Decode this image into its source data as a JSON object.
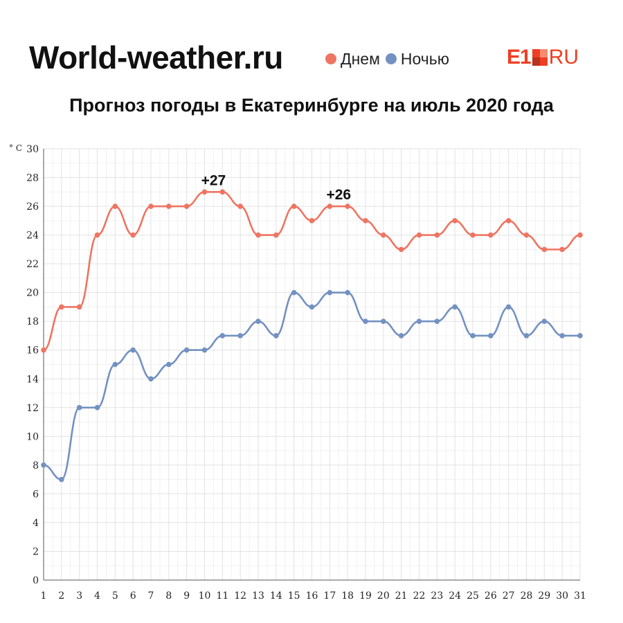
{
  "header": {
    "site_title": "World-weather.ru",
    "legend": [
      {
        "label": "Днем",
        "color": "#ef7462"
      },
      {
        "label": "Ночью",
        "color": "#7391c1"
      }
    ],
    "logo": {
      "left": "E1",
      "right": "RU",
      "color": "#ef3e23"
    }
  },
  "chart_data": {
    "type": "line",
    "title": "Прогноз погоды в Екатеринбурге на июль 2020 года",
    "ylabel": "° C",
    "xlabel": "",
    "x": [
      1,
      2,
      3,
      4,
      5,
      6,
      7,
      8,
      9,
      10,
      11,
      12,
      13,
      14,
      15,
      16,
      17,
      18,
      19,
      20,
      21,
      22,
      23,
      24,
      25,
      26,
      27,
      28,
      29,
      30,
      31
    ],
    "ylim": [
      0,
      30
    ],
    "yticks": [
      0,
      2,
      4,
      6,
      8,
      10,
      12,
      14,
      16,
      18,
      20,
      22,
      24,
      26,
      28,
      30
    ],
    "grid": true,
    "series": [
      {
        "name": "Днем",
        "color": "#ef7462",
        "values": [
          16,
          19,
          19,
          24,
          26,
          24,
          26,
          26,
          26,
          27,
          27,
          26,
          24,
          24,
          26,
          25,
          26,
          26,
          25,
          24,
          23,
          24,
          24,
          25,
          24,
          24,
          25,
          24,
          23,
          23,
          24
        ]
      },
      {
        "name": "Ночью",
        "color": "#7391c1",
        "values": [
          8,
          7,
          12,
          12,
          15,
          16,
          14,
          15,
          16,
          16,
          17,
          17,
          18,
          17,
          20,
          19,
          20,
          20,
          18,
          18,
          17,
          18,
          18,
          19,
          17,
          17,
          19,
          17,
          18,
          17,
          17
        ]
      }
    ],
    "annotations": [
      {
        "text": "+27",
        "x": 10.5,
        "y": 27
      },
      {
        "text": "+26",
        "x": 17.5,
        "y": 26
      }
    ]
  }
}
